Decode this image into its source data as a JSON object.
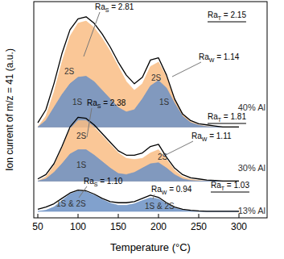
{
  "chart_data": {
    "type": "line",
    "x_label": "Temperature (°C)",
    "y_label": "Ion current of m/z = 41 (a.u.)",
    "x": [
      50,
      60,
      70,
      80,
      90,
      100,
      110,
      120,
      130,
      140,
      150,
      160,
      170,
      180,
      190,
      200,
      210,
      220,
      230,
      240,
      250,
      260,
      270,
      280,
      290,
      300
    ],
    "xlim": [
      45,
      335
    ],
    "xticks": [
      50,
      100,
      150,
      200,
      250,
      300
    ],
    "ylim": [
      0,
      100
    ],
    "tick_labels": "x",
    "grid": false,
    "series": [
      {
        "name": "2S",
        "type": "area",
        "color": "#f9bd85",
        "values": [
          42,
          47,
          58,
          72,
          84,
          90,
          91,
          88,
          83,
          77,
          70,
          63,
          59,
          62,
          70,
          72,
          65,
          55,
          48,
          44.5,
          43,
          42.3,
          42,
          42,
          42,
          42
        ]
      },
      {
        "name": "1S",
        "type": "area",
        "color": "#6b90c4",
        "values": [
          42,
          45,
          51,
          57,
          62,
          65,
          65.5,
          63,
          59,
          55,
          51,
          49,
          50,
          55,
          61,
          63.5,
          60,
          53,
          47,
          44,
          42.8,
          42.2,
          42,
          42,
          42,
          42
        ]
      },
      {
        "name": "40% Al",
        "type": "line",
        "color": "#000000",
        "values": [
          44,
          50,
          62,
          76,
          87,
          92,
          93,
          90,
          85,
          79,
          72,
          66,
          62,
          65,
          73,
          74,
          66,
          55,
          48,
          45,
          43.5,
          43,
          42.5,
          42,
          42,
          42
        ]
      },
      {
        "name": "2S",
        "type": "area",
        "color": "#f9bd85",
        "values": [
          17,
          19,
          24,
          32,
          41,
          45,
          45,
          42,
          38,
          34,
          30,
          27.5,
          27,
          27.5,
          30,
          31.5,
          27,
          22,
          19,
          17.8,
          17.3,
          17,
          17,
          17,
          17,
          17
        ]
      },
      {
        "name": "1S",
        "type": "area",
        "color": "#6b90c4",
        "values": [
          17,
          18,
          21,
          25,
          29.5,
          31.5,
          31.5,
          29,
          26,
          23,
          20.5,
          20,
          21,
          23,
          25,
          25.5,
          23,
          20,
          18,
          17.3,
          17,
          17,
          17,
          17,
          17,
          17
        ]
      },
      {
        "name": "30% Al",
        "type": "line",
        "color": "#000000",
        "values": [
          18,
          20,
          25,
          33,
          42,
          46.5,
          46,
          43,
          39,
          35,
          31,
          29,
          29,
          30,
          33,
          34,
          28,
          23,
          20,
          18.5,
          18,
          17.5,
          17.3,
          17,
          17,
          17
        ]
      },
      {
        "name": "1S & 2S",
        "type": "area",
        "color": "#6b90c4",
        "values": [
          3,
          3.5,
          5,
          8,
          11,
          12.3,
          12,
          10.5,
          8.5,
          6.8,
          5.8,
          5.8,
          6.5,
          8,
          9.3,
          8.8,
          6.5,
          4.5,
          3.5,
          3.1,
          3,
          3,
          3,
          3,
          3,
          3
        ]
      },
      {
        "name": "13% Al",
        "type": "line",
        "color": "#000000",
        "values": [
          4,
          5,
          6.5,
          9,
          11.5,
          12.8,
          12.5,
          11,
          9,
          7.5,
          7,
          7,
          7.5,
          9,
          10.5,
          9.5,
          7,
          5,
          4,
          3.5,
          3.2,
          3,
          3,
          3,
          3,
          3
        ]
      }
    ],
    "annotations": [
      {
        "text": "Ra",
        "sub": "S",
        "rest": " = 2.81"
      },
      {
        "text": "Ra",
        "sub": "T",
        "rest": " = 2.15"
      },
      {
        "text": "Ra",
        "sub": "W",
        "rest": " = 1.14"
      },
      {
        "text": "Ra",
        "sub": "S",
        "rest": " = 2.38"
      },
      {
        "text": "Ra",
        "sub": "T",
        "rest": " = 1.81"
      },
      {
        "text": "Ra",
        "sub": "W",
        "rest": " = 1.11"
      },
      {
        "text": "Ra",
        "sub": "S",
        "rest": " = 1.10"
      },
      {
        "text": "Ra",
        "sub": "W",
        "rest": " = 0.94"
      },
      {
        "text": "Ra",
        "sub": "T",
        "rest": " = 1.03"
      }
    ]
  }
}
